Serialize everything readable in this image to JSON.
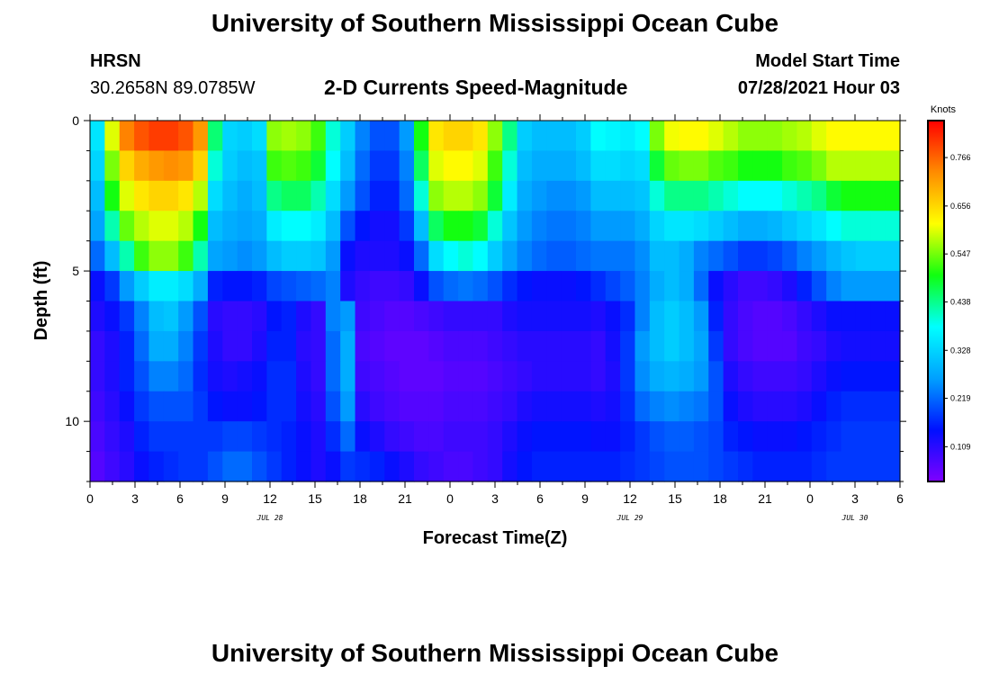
{
  "page": {
    "title_top": "University of Southern Mississippi Ocean Cube",
    "title_bottom": "University of Southern Mississippi Ocean Cube",
    "station": "HRSN",
    "coords": "30.2658N  89.0785W",
    "subtitle": "2-D Currents Speed-Magnitude",
    "model_label": "Model Start Time",
    "model_time": "07/28/2021 Hour 03"
  },
  "chart_data": {
    "type": "heatmap",
    "title": "2-D Currents Speed-Magnitude",
    "xlabel": "Forecast Time(Z)",
    "ylabel": "Depth (ft)",
    "x_ticks": [
      "0",
      "3",
      "6",
      "9",
      "12",
      "15",
      "18",
      "21",
      "0",
      "3",
      "6",
      "9",
      "12",
      "15",
      "18",
      "21",
      "0",
      "3",
      "6"
    ],
    "x_range_hours": [
      0,
      54
    ],
    "y_ticks": [
      "0",
      "5",
      "10"
    ],
    "y_range_ft": [
      0,
      12
    ],
    "date_labels": [
      {
        "label": "JUL 28",
        "hour": 12
      },
      {
        "label": "JUL 29",
        "hour": 36
      },
      {
        "label": "JUL 30",
        "hour": 51
      }
    ],
    "colorbar": {
      "title": "Knots",
      "ticks": [
        "0.766",
        "0.656",
        "0.547",
        "0.438",
        "0.328",
        "0.219",
        "0.109"
      ],
      "tick_values": [
        0.766,
        0.656,
        0.547,
        0.438,
        0.328,
        0.219,
        0.109
      ],
      "range": [
        0.03,
        0.85
      ],
      "colors": [
        "#7f00ff",
        "#0010ff",
        "#00a0ff",
        "#00ffff",
        "#10ff10",
        "#ffff00",
        "#ff8c00",
        "#ff0000"
      ]
    },
    "depth_rows_ft": [
      0,
      1,
      2,
      3,
      4,
      5,
      6,
      7,
      8,
      9,
      10,
      11
    ],
    "grid": [
      [
        0.35,
        0.6,
        0.74,
        0.78,
        0.8,
        0.8,
        0.78,
        0.72,
        0.45,
        0.33,
        0.32,
        0.34,
        0.56,
        0.57,
        0.56,
        0.52,
        0.4,
        0.32,
        0.24,
        0.2,
        0.2,
        0.26,
        0.5,
        0.64,
        0.66,
        0.66,
        0.64,
        0.56,
        0.44,
        0.32,
        0.3,
        0.3,
        0.3,
        0.32,
        0.38,
        0.37,
        0.36,
        0.38,
        0.55,
        0.61,
        0.62,
        0.62,
        0.6,
        0.58,
        0.56,
        0.56,
        0.56,
        0.57,
        0.58,
        0.6,
        0.62,
        0.62,
        0.62,
        0.62,
        0.62
      ],
      [
        0.33,
        0.55,
        0.66,
        0.7,
        0.72,
        0.73,
        0.72,
        0.66,
        0.4,
        0.32,
        0.3,
        0.31,
        0.52,
        0.53,
        0.52,
        0.48,
        0.38,
        0.3,
        0.22,
        0.18,
        0.18,
        0.24,
        0.46,
        0.6,
        0.62,
        0.62,
        0.6,
        0.52,
        0.4,
        0.3,
        0.28,
        0.28,
        0.28,
        0.3,
        0.34,
        0.34,
        0.33,
        0.34,
        0.48,
        0.54,
        0.55,
        0.55,
        0.53,
        0.52,
        0.5,
        0.5,
        0.5,
        0.52,
        0.53,
        0.55,
        0.58,
        0.58,
        0.58,
        0.58,
        0.58
      ],
      [
        0.3,
        0.5,
        0.6,
        0.64,
        0.66,
        0.66,
        0.64,
        0.58,
        0.34,
        0.3,
        0.28,
        0.3,
        0.44,
        0.46,
        0.46,
        0.42,
        0.34,
        0.26,
        0.2,
        0.16,
        0.16,
        0.22,
        0.4,
        0.56,
        0.58,
        0.58,
        0.56,
        0.48,
        0.36,
        0.28,
        0.26,
        0.25,
        0.25,
        0.26,
        0.3,
        0.3,
        0.3,
        0.31,
        0.4,
        0.44,
        0.44,
        0.44,
        0.42,
        0.4,
        0.38,
        0.38,
        0.38,
        0.4,
        0.42,
        0.44,
        0.48,
        0.5,
        0.5,
        0.5,
        0.5
      ],
      [
        0.27,
        0.42,
        0.54,
        0.58,
        0.6,
        0.6,
        0.58,
        0.5,
        0.3,
        0.28,
        0.27,
        0.28,
        0.36,
        0.38,
        0.38,
        0.36,
        0.3,
        0.2,
        0.15,
        0.13,
        0.13,
        0.18,
        0.3,
        0.46,
        0.5,
        0.5,
        0.48,
        0.4,
        0.31,
        0.26,
        0.24,
        0.23,
        0.23,
        0.24,
        0.26,
        0.26,
        0.26,
        0.28,
        0.33,
        0.35,
        0.35,
        0.34,
        0.32,
        0.3,
        0.28,
        0.28,
        0.29,
        0.31,
        0.33,
        0.35,
        0.38,
        0.4,
        0.4,
        0.4,
        0.4
      ],
      [
        0.22,
        0.3,
        0.42,
        0.52,
        0.56,
        0.56,
        0.52,
        0.42,
        0.27,
        0.26,
        0.25,
        0.26,
        0.3,
        0.32,
        0.32,
        0.31,
        0.26,
        0.14,
        0.12,
        0.12,
        0.12,
        0.14,
        0.22,
        0.34,
        0.38,
        0.4,
        0.38,
        0.32,
        0.27,
        0.24,
        0.22,
        0.21,
        0.21,
        0.22,
        0.23,
        0.23,
        0.23,
        0.25,
        0.3,
        0.3,
        0.28,
        0.24,
        0.22,
        0.2,
        0.18,
        0.18,
        0.19,
        0.21,
        0.24,
        0.26,
        0.29,
        0.31,
        0.32,
        0.32,
        0.32
      ],
      [
        0.14,
        0.18,
        0.26,
        0.32,
        0.36,
        0.36,
        0.34,
        0.28,
        0.16,
        0.15,
        0.15,
        0.16,
        0.19,
        0.2,
        0.21,
        0.22,
        0.24,
        0.12,
        0.1,
        0.09,
        0.09,
        0.1,
        0.14,
        0.2,
        0.22,
        0.23,
        0.22,
        0.2,
        0.17,
        0.15,
        0.14,
        0.14,
        0.14,
        0.15,
        0.17,
        0.19,
        0.21,
        0.24,
        0.28,
        0.3,
        0.28,
        0.22,
        0.14,
        0.11,
        0.09,
        0.09,
        0.1,
        0.12,
        0.16,
        0.2,
        0.24,
        0.26,
        0.26,
        0.26,
        0.26
      ],
      [
        0.12,
        0.14,
        0.18,
        0.24,
        0.3,
        0.31,
        0.26,
        0.2,
        0.11,
        0.1,
        0.1,
        0.11,
        0.15,
        0.16,
        0.12,
        0.1,
        0.24,
        0.26,
        0.09,
        0.08,
        0.07,
        0.07,
        0.08,
        0.09,
        0.1,
        0.1,
        0.1,
        0.1,
        0.12,
        0.13,
        0.13,
        0.13,
        0.13,
        0.13,
        0.12,
        0.14,
        0.17,
        0.24,
        0.3,
        0.32,
        0.3,
        0.26,
        0.16,
        0.1,
        0.08,
        0.07,
        0.07,
        0.08,
        0.1,
        0.12,
        0.14,
        0.14,
        0.14,
        0.14,
        0.14
      ],
      [
        0.1,
        0.12,
        0.16,
        0.22,
        0.28,
        0.28,
        0.24,
        0.18,
        0.12,
        0.1,
        0.1,
        0.12,
        0.16,
        0.16,
        0.11,
        0.1,
        0.22,
        0.28,
        0.08,
        0.07,
        0.06,
        0.06,
        0.06,
        0.07,
        0.08,
        0.08,
        0.08,
        0.09,
        0.1,
        0.11,
        0.11,
        0.11,
        0.11,
        0.11,
        0.1,
        0.13,
        0.18,
        0.26,
        0.3,
        0.32,
        0.3,
        0.27,
        0.18,
        0.1,
        0.08,
        0.07,
        0.07,
        0.07,
        0.09,
        0.1,
        0.12,
        0.13,
        0.13,
        0.13,
        0.13
      ],
      [
        0.1,
        0.12,
        0.16,
        0.2,
        0.24,
        0.24,
        0.22,
        0.17,
        0.13,
        0.12,
        0.13,
        0.14,
        0.17,
        0.17,
        0.12,
        0.1,
        0.22,
        0.28,
        0.09,
        0.08,
        0.07,
        0.06,
        0.06,
        0.06,
        0.07,
        0.07,
        0.07,
        0.08,
        0.09,
        0.1,
        0.11,
        0.11,
        0.11,
        0.11,
        0.1,
        0.12,
        0.18,
        0.25,
        0.28,
        0.29,
        0.28,
        0.26,
        0.2,
        0.12,
        0.1,
        0.09,
        0.09,
        0.09,
        0.1,
        0.12,
        0.14,
        0.15,
        0.15,
        0.15,
        0.15
      ],
      [
        0.09,
        0.11,
        0.14,
        0.18,
        0.2,
        0.2,
        0.2,
        0.18,
        0.15,
        0.14,
        0.14,
        0.15,
        0.17,
        0.17,
        0.13,
        0.11,
        0.2,
        0.26,
        0.11,
        0.09,
        0.08,
        0.07,
        0.07,
        0.07,
        0.08,
        0.08,
        0.08,
        0.09,
        0.1,
        0.12,
        0.13,
        0.13,
        0.13,
        0.13,
        0.12,
        0.13,
        0.17,
        0.22,
        0.24,
        0.25,
        0.24,
        0.23,
        0.2,
        0.14,
        0.12,
        0.11,
        0.11,
        0.11,
        0.12,
        0.14,
        0.16,
        0.17,
        0.17,
        0.17,
        0.17
      ],
      [
        0.08,
        0.1,
        0.12,
        0.16,
        0.18,
        0.18,
        0.18,
        0.18,
        0.18,
        0.19,
        0.19,
        0.18,
        0.17,
        0.16,
        0.14,
        0.12,
        0.17,
        0.22,
        0.14,
        0.12,
        0.1,
        0.09,
        0.08,
        0.08,
        0.09,
        0.09,
        0.09,
        0.1,
        0.12,
        0.14,
        0.15,
        0.15,
        0.15,
        0.15,
        0.14,
        0.14,
        0.16,
        0.18,
        0.2,
        0.21,
        0.21,
        0.2,
        0.19,
        0.16,
        0.15,
        0.14,
        0.14,
        0.14,
        0.15,
        0.16,
        0.17,
        0.18,
        0.18,
        0.18,
        0.18
      ],
      [
        0.07,
        0.09,
        0.11,
        0.14,
        0.16,
        0.17,
        0.18,
        0.18,
        0.2,
        0.22,
        0.22,
        0.2,
        0.18,
        0.16,
        0.14,
        0.12,
        0.14,
        0.18,
        0.17,
        0.16,
        0.14,
        0.12,
        0.1,
        0.09,
        0.08,
        0.08,
        0.09,
        0.1,
        0.13,
        0.15,
        0.16,
        0.16,
        0.16,
        0.16,
        0.16,
        0.16,
        0.17,
        0.18,
        0.19,
        0.2,
        0.2,
        0.2,
        0.19,
        0.18,
        0.17,
        0.16,
        0.16,
        0.16,
        0.16,
        0.17,
        0.18,
        0.18,
        0.18,
        0.18,
        0.18
      ]
    ]
  }
}
